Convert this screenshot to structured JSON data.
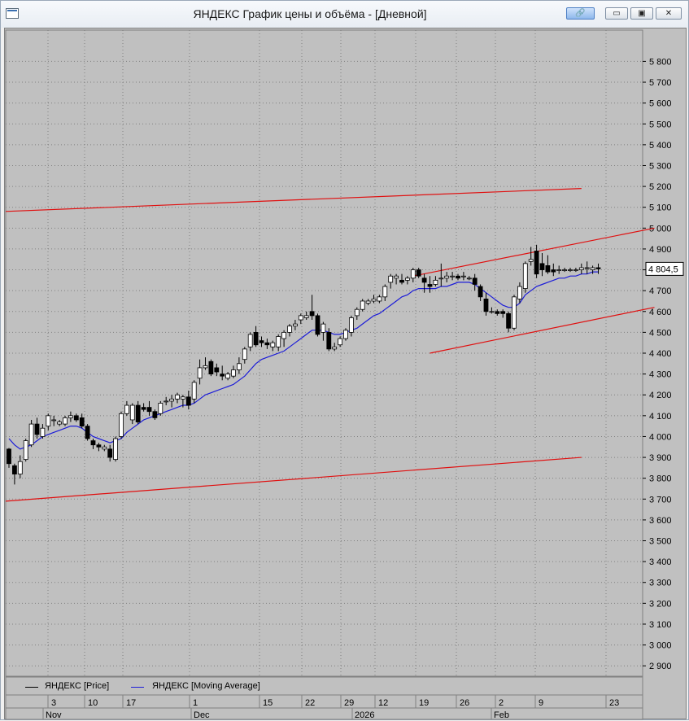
{
  "window": {
    "title": "ЯНДЕКС График цены и объёма - [Дневной]",
    "buttons": {
      "link": "🔗",
      "minimize": "▭",
      "maximize": "▣",
      "close": "✕"
    }
  },
  "colors": {
    "background": "#c0c0c0",
    "up_candle": "#ffffff",
    "down_candle": "#000000",
    "moving_average": "#1c1cd8",
    "trendline": "#e01010",
    "grid": "#808080"
  },
  "legend": [
    {
      "label": "ЯНДЕКС [Price]",
      "color": "#000000"
    },
    {
      "label": "ЯНДЕКС [Moving Average]",
      "color": "#1c1cd8"
    }
  ],
  "last_price_label": "4 804,5",
  "x_axis": {
    "days": [
      "3",
      "10",
      "17",
      "1",
      "15",
      "22",
      "29",
      "12",
      "19",
      "26",
      "2",
      "9",
      "23"
    ],
    "months": [
      "Nov",
      "Dec",
      "2026",
      "Feb"
    ]
  },
  "chart_data": {
    "type": "candlestick",
    "ylim": [
      2850,
      5950
    ],
    "y_ticks": [
      "2 900",
      "3 000",
      "3 100",
      "3 200",
      "3 300",
      "3 400",
      "3 500",
      "3 600",
      "3 700",
      "3 800",
      "3 900",
      "4 000",
      "4 100",
      "4 200",
      "4 300",
      "4 400",
      "4 500",
      "4 600",
      "4 700",
      "4 800",
      "4 900",
      "5 000",
      "5 100",
      "5 200",
      "5 300",
      "5 400",
      "5 500",
      "5 600",
      "5 700",
      "5 800"
    ],
    "candles": [
      [
        3940,
        3945,
        3850,
        3870
      ],
      [
        3860,
        3870,
        3770,
        3820
      ],
      [
        3820,
        3910,
        3800,
        3880
      ],
      [
        3890,
        3990,
        3880,
        3980
      ],
      [
        3960,
        4080,
        3950,
        4060
      ],
      [
        4060,
        4090,
        3990,
        4010
      ],
      [
        4000,
        4060,
        3990,
        4040
      ],
      [
        4050,
        4110,
        4030,
        4100
      ],
      [
        4080,
        4100,
        4050,
        4080
      ],
      [
        4060,
        4080,
        4050,
        4070
      ],
      [
        4060,
        4100,
        4050,
        4090
      ],
      [
        4090,
        4120,
        4070,
        4100
      ],
      [
        4100,
        4110,
        4070,
        4080
      ],
      [
        4090,
        4110,
        4040,
        4050
      ],
      [
        4050,
        4060,
        3980,
        3990
      ],
      [
        3980,
        3990,
        3940,
        3960
      ],
      [
        3960,
        3970,
        3930,
        3950
      ],
      [
        3940,
        3960,
        3930,
        3950
      ],
      [
        3940,
        3960,
        3880,
        3900
      ],
      [
        3890,
        4000,
        3880,
        3990
      ],
      [
        4000,
        4120,
        3990,
        4110
      ],
      [
        4110,
        4170,
        4100,
        4150
      ],
      [
        4080,
        4160,
        4060,
        4150
      ],
      [
        4150,
        4170,
        4060,
        4070
      ],
      [
        4140,
        4160,
        4120,
        4130
      ],
      [
        4140,
        4170,
        4100,
        4120
      ],
      [
        4120,
        4130,
        4080,
        4090
      ],
      [
        4110,
        4170,
        4100,
        4160
      ],
      [
        4170,
        4190,
        4150,
        4170
      ],
      [
        4170,
        4200,
        4140,
        4180
      ],
      [
        4180,
        4210,
        4160,
        4200
      ],
      [
        4180,
        4200,
        4140,
        4190
      ],
      [
        4190,
        4220,
        4130,
        4150
      ],
      [
        4180,
        4270,
        4160,
        4260
      ],
      [
        4280,
        4370,
        4250,
        4330
      ],
      [
        4330,
        4380,
        4320,
        4340
      ],
      [
        4360,
        4370,
        4290,
        4300
      ],
      [
        4330,
        4350,
        4290,
        4310
      ],
      [
        4300,
        4340,
        4270,
        4290
      ],
      [
        4280,
        4310,
        4270,
        4300
      ],
      [
        4290,
        4340,
        4280,
        4320
      ],
      [
        4320,
        4380,
        4300,
        4350
      ],
      [
        4370,
        4430,
        4350,
        4420
      ],
      [
        4430,
        4500,
        4410,
        4490
      ],
      [
        4500,
        4530,
        4430,
        4440
      ],
      [
        4460,
        4480,
        4430,
        4450
      ],
      [
        4450,
        4470,
        4420,
        4440
      ],
      [
        4430,
        4460,
        4410,
        4450
      ],
      [
        4430,
        4490,
        4410,
        4480
      ],
      [
        4470,
        4510,
        4430,
        4500
      ],
      [
        4500,
        4540,
        4480,
        4530
      ],
      [
        4530,
        4560,
        4510,
        4540
      ],
      [
        4560,
        4590,
        4540,
        4580
      ],
      [
        4570,
        4600,
        4560,
        4580
      ],
      [
        4600,
        4680,
        4560,
        4580
      ],
      [
        4580,
        4590,
        4480,
        4490
      ],
      [
        4500,
        4550,
        4460,
        4540
      ],
      [
        4500,
        4520,
        4410,
        4420
      ],
      [
        4420,
        4450,
        4410,
        4430
      ],
      [
        4440,
        4480,
        4430,
        4470
      ],
      [
        4470,
        4520,
        4460,
        4510
      ],
      [
        4500,
        4580,
        4480,
        4570
      ],
      [
        4580,
        4620,
        4560,
        4610
      ],
      [
        4610,
        4660,
        4600,
        4650
      ],
      [
        4640,
        4660,
        4630,
        4650
      ],
      [
        4650,
        4680,
        4640,
        4660
      ],
      [
        4650,
        4680,
        4640,
        4670
      ],
      [
        4670,
        4730,
        4650,
        4720
      ],
      [
        4740,
        4780,
        4710,
        4770
      ],
      [
        4760,
        4780,
        4730,
        4770
      ],
      [
        4750,
        4780,
        4730,
        4740
      ],
      [
        4750,
        4770,
        4730,
        4760
      ],
      [
        4760,
        4810,
        4740,
        4800
      ],
      [
        4800,
        4810,
        4760,
        4770
      ],
      [
        4760,
        4780,
        4690,
        4740
      ],
      [
        4730,
        4770,
        4690,
        4720
      ],
      [
        4730,
        4770,
        4720,
        4750
      ],
      [
        4760,
        4830,
        4720,
        4760
      ],
      [
        4760,
        4790,
        4740,
        4770
      ],
      [
        4770,
        4790,
        4750,
        4770
      ],
      [
        4770,
        4780,
        4750,
        4760
      ],
      [
        4770,
        4790,
        4750,
        4770
      ],
      [
        4760,
        4770,
        4750,
        4760
      ],
      [
        4760,
        4780,
        4700,
        4730
      ],
      [
        4720,
        4730,
        4650,
        4670
      ],
      [
        4660,
        4690,
        4580,
        4600
      ],
      [
        4600,
        4620,
        4590,
        4600
      ],
      [
        4600,
        4610,
        4580,
        4590
      ],
      [
        4600,
        4610,
        4570,
        4590
      ],
      [
        4590,
        4600,
        4500,
        4520
      ],
      [
        4520,
        4680,
        4510,
        4670
      ],
      [
        4660,
        4740,
        4640,
        4720
      ],
      [
        4710,
        4840,
        4690,
        4830
      ],
      [
        4840,
        4910,
        4820,
        4850
      ],
      [
        4890,
        4920,
        4760,
        4780
      ],
      [
        4830,
        4880,
        4770,
        4800
      ],
      [
        4820,
        4870,
        4780,
        4790
      ],
      [
        4800,
        4830,
        4770,
        4790
      ],
      [
        4800,
        4820,
        4780,
        4800
      ],
      [
        4800,
        4810,
        4790,
        4800
      ],
      [
        4800,
        4810,
        4790,
        4800
      ],
      [
        4800,
        4810,
        4790,
        4800
      ],
      [
        4800,
        4830,
        4780,
        4810
      ],
      [
        4810,
        4840,
        4780,
        4810
      ],
      [
        4800,
        4820,
        4780,
        4810
      ],
      [
        4810,
        4830,
        4780,
        4804.5
      ]
    ],
    "moving_average": [
      3990,
      3960,
      3940,
      3950,
      3960,
      3980,
      4000,
      4010,
      4020,
      4030,
      4040,
      4050,
      4050,
      4040,
      4020,
      4000,
      3990,
      3980,
      3970,
      3980,
      3990,
      4020,
      4040,
      4060,
      4080,
      4090,
      4100,
      4110,
      4120,
      4130,
      4140,
      4150,
      4150,
      4160,
      4180,
      4200,
      4210,
      4220,
      4230,
      4240,
      4250,
      4270,
      4290,
      4320,
      4350,
      4370,
      4380,
      4390,
      4400,
      4410,
      4430,
      4450,
      4470,
      4490,
      4510,
      4510,
      4510,
      4500,
      4490,
      4490,
      4500,
      4510,
      4520,
      4540,
      4560,
      4580,
      4590,
      4610,
      4630,
      4650,
      4670,
      4680,
      4700,
      4710,
      4710,
      4710,
      4710,
      4720,
      4720,
      4730,
      4740,
      4740,
      4740,
      4730,
      4710,
      4690,
      4670,
      4650,
      4630,
      4620,
      4620,
      4640,
      4680,
      4700,
      4720,
      4730,
      4740,
      4750,
      4760,
      4760,
      4770,
      4770,
      4780,
      4780,
      4790,
      4790
    ],
    "trendlines": [
      {
        "x": [
          0,
          102
        ],
        "y": [
          5080,
          5190
        ]
      },
      {
        "x": [
          0,
          102
        ],
        "y": [
          3690,
          3900
        ]
      },
      {
        "x": [
          72,
          115
        ],
        "y": [
          4770,
          5000
        ]
      },
      {
        "x": [
          75,
          115
        ],
        "y": [
          4400,
          4620
        ]
      }
    ],
    "legend_placement": "bottom-left",
    "grid": true
  }
}
